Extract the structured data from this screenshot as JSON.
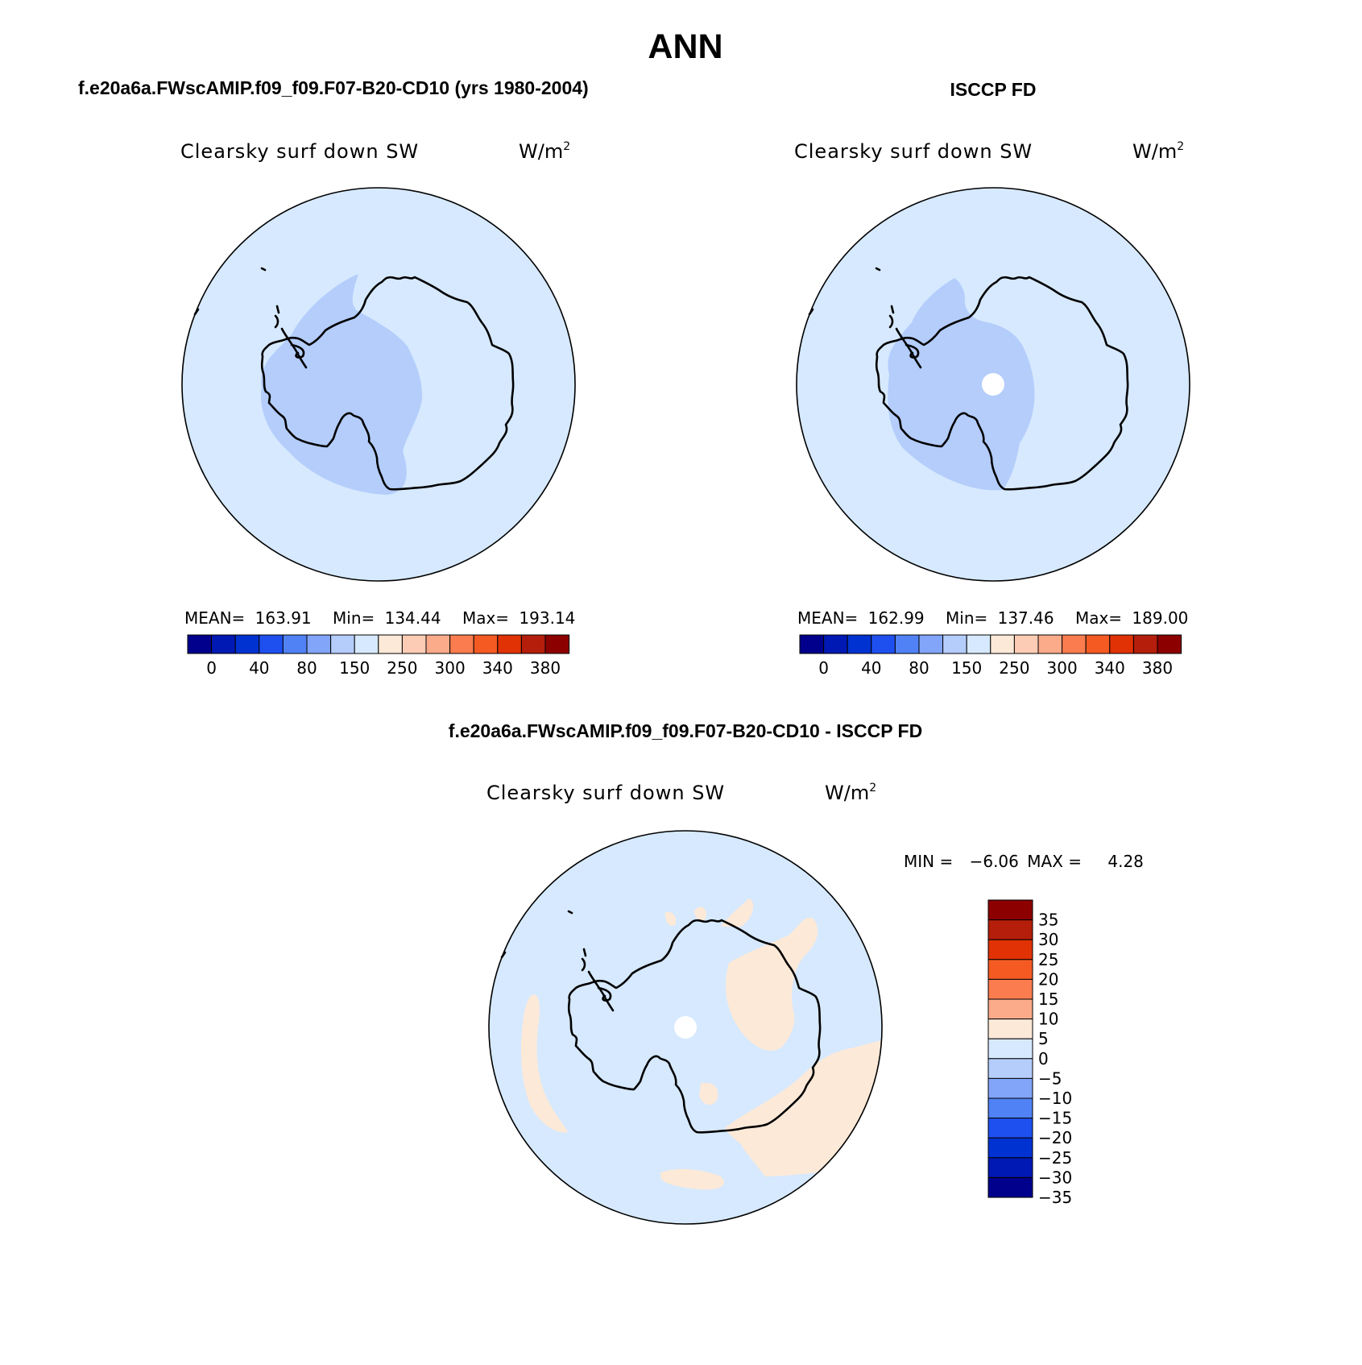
{
  "title": "ANN",
  "panels": [
    {
      "id": "model",
      "header": "f.e20a6a.FWscAMIP.f09_f09.F07-B20-CD10 (yrs 1980-2004)",
      "variable": "Clearsky surf down SW",
      "units_base": "W/m",
      "units_exp": "2",
      "stats": {
        "mean_label": "MEAN=",
        "mean": "163.91",
        "min_label": "Min=",
        "min": "134.44",
        "max_label": "Max=",
        "max": "193.14"
      },
      "background_color": "#d6e9fe",
      "low_region_color": "#b4cdfb"
    },
    {
      "id": "obs",
      "header": "ISCCP FD",
      "variable": "Clearsky surf down SW",
      "units_base": "W/m",
      "units_exp": "2",
      "stats": {
        "mean_label": "MEAN=",
        "mean": "162.99",
        "min_label": "Min=",
        "min": "137.46",
        "max_label": "Max=",
        "max": "189.00"
      },
      "background_color": "#d6e9fe",
      "low_region_color": "#b4cdfb",
      "missing_pole_color": "#ffffff"
    }
  ],
  "colorbar_abs": {
    "colors": [
      "#00008c",
      "#0019b4",
      "#0032d2",
      "#1e50f0",
      "#5082f5",
      "#82a5fa",
      "#b4cdfb",
      "#d6e9fe",
      "#fde9d8",
      "#fccdb4",
      "#fbab8a",
      "#fa7c4f",
      "#f55a23",
      "#e13205",
      "#b41e0a",
      "#8c0000"
    ],
    "tick_labels": [
      "0",
      "40",
      "80",
      "150",
      "250",
      "300",
      "340",
      "380"
    ]
  },
  "diff_panel": {
    "header": "f.e20a6a.FWscAMIP.f09_f09.F07-B20-CD10 - ISCCP FD",
    "variable": "Clearsky surf down SW",
    "units_base": "W/m",
    "units_exp": "2",
    "minmax": {
      "min_label": "MIN =",
      "min": "−6.06",
      "max_label": "MAX =",
      "max": "4.28"
    },
    "negative_color": "#d6e9fe",
    "positive_color": "#fde9d8",
    "missing_pole_color": "#ffffff"
  },
  "colorbar_diff": {
    "colors": [
      "#8c0000",
      "#b41e0a",
      "#e13205",
      "#f55a23",
      "#fa7c4f",
      "#fbab8a",
      "#fde9d8",
      "#d6e9fe",
      "#b4cdfb",
      "#82a5fa",
      "#5082f5",
      "#1e50f0",
      "#0032d2",
      "#0019b4",
      "#00008c"
    ],
    "tick_labels": [
      "35",
      "30",
      "25",
      "20",
      "15",
      "10",
      "5",
      "0",
      "−5",
      "−10",
      "−15",
      "−20",
      "−25",
      "−30",
      "−35"
    ]
  }
}
